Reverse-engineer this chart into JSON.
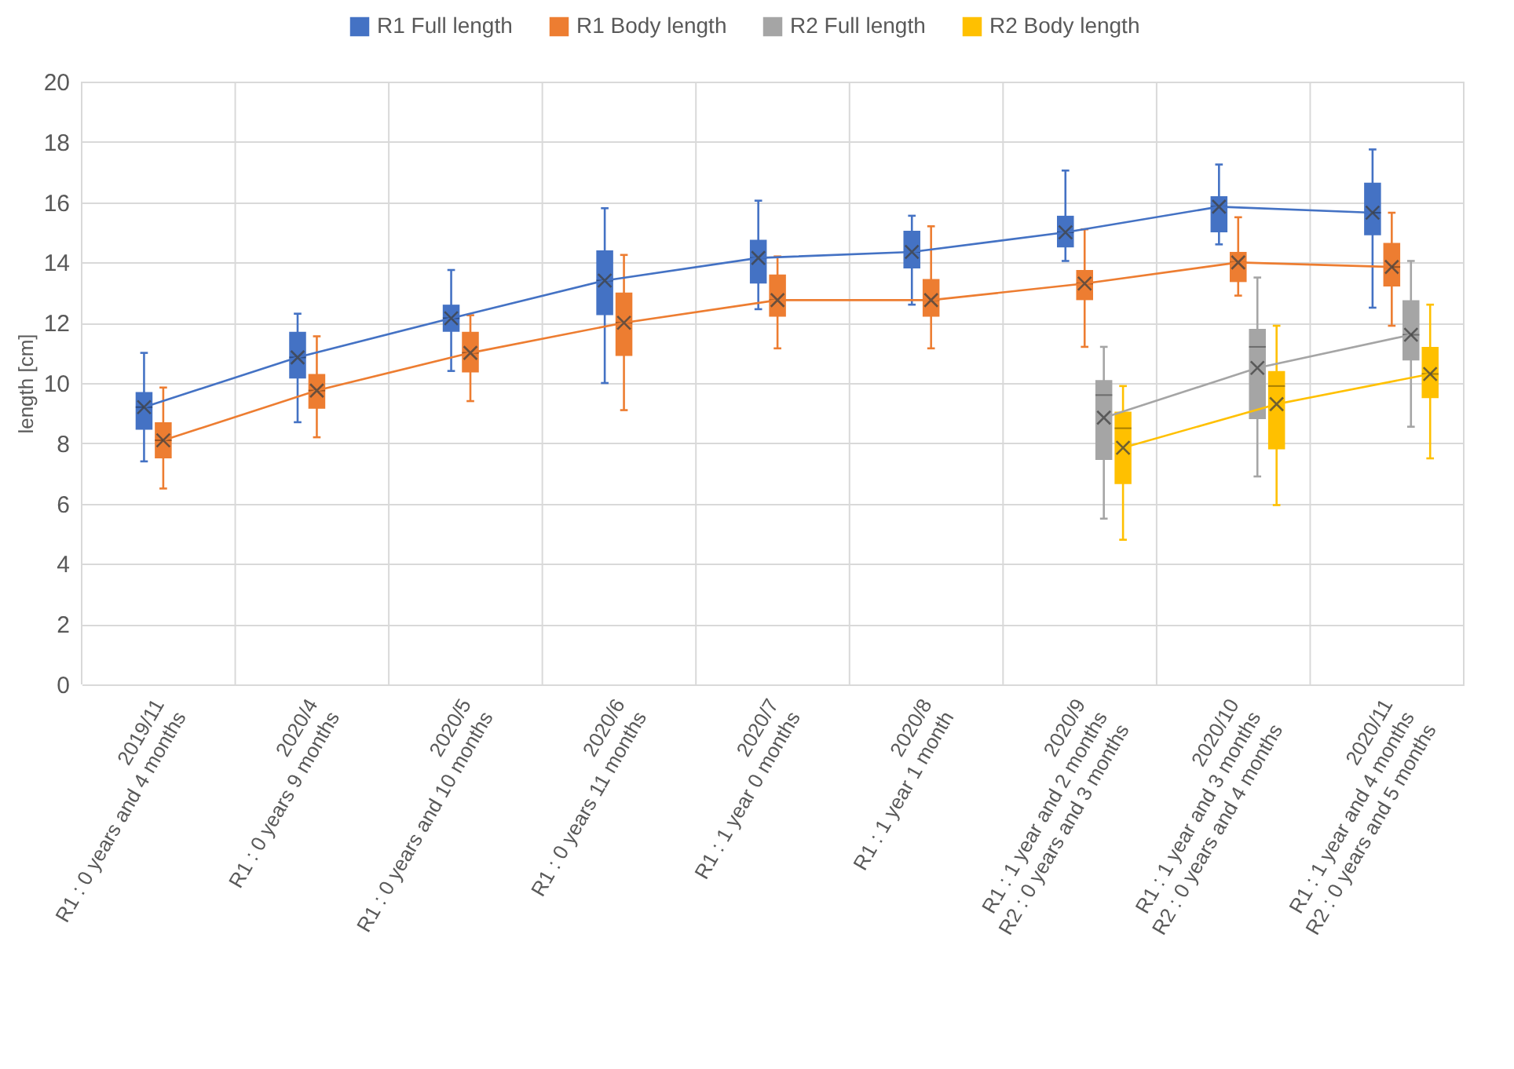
{
  "chart_data": {
    "type": "box",
    "ylabel": "length [cm]",
    "categories": [
      "2019/11\nR1 : 0 years and 4 months",
      "2020/4\nR1 : 0 years 9 months",
      "2020/5\nR1 : 0 years and 10 months",
      "2020/6\nR1 : 0 years 11 months",
      "2020/7\nR1 : 1 year 0 months",
      "2020/8\nR1 : 1 year 1 month",
      "2020/9\nR1 : 1 year and 2 months\nR2 : 0 years and 3 months",
      "2020/10\nR1 : 1 year and 3 months\nR2 : 0 years and 4 months",
      "2020/11\nR1 : 1 year and 4 months\nR2 : 0 years and 5 months"
    ],
    "series": [
      {
        "name": "R1 Full length",
        "color": "#4472c4",
        "boxes": [
          {
            "low": 7.4,
            "q1": 8.45,
            "median": 9.2,
            "q3": 9.7,
            "high": 11.0
          },
          {
            "low": 8.7,
            "q1": 10.15,
            "median": 10.85,
            "q3": 11.7,
            "high": 12.3
          },
          {
            "low": 10.4,
            "q1": 11.7,
            "median": 12.15,
            "q3": 12.6,
            "high": 13.75
          },
          {
            "low": 10.0,
            "q1": 12.25,
            "median": 13.4,
            "q3": 14.4,
            "high": 15.8
          },
          {
            "low": 12.45,
            "q1": 13.3,
            "median": 14.15,
            "q3": 14.75,
            "high": 16.05
          },
          {
            "low": 12.6,
            "q1": 13.8,
            "median": 14.35,
            "q3": 15.05,
            "high": 15.55
          },
          {
            "low": 14.05,
            "q1": 14.5,
            "median": 15.0,
            "q3": 15.55,
            "high": 17.05
          },
          {
            "low": 14.6,
            "q1": 15.0,
            "median": 15.85,
            "q3": 16.2,
            "high": 17.25
          },
          {
            "low": 12.5,
            "q1": 14.9,
            "median": 15.65,
            "q3": 16.65,
            "high": 17.75
          }
        ]
      },
      {
        "name": "R1 Body length",
        "color": "#ed7d31",
        "boxes": [
          {
            "low": 6.5,
            "q1": 7.5,
            "median": 8.1,
            "q3": 8.7,
            "high": 9.85
          },
          {
            "low": 8.2,
            "q1": 9.15,
            "median": 9.75,
            "q3": 10.3,
            "high": 11.55
          },
          {
            "low": 9.4,
            "q1": 10.35,
            "median": 11.0,
            "q3": 11.7,
            "high": 12.25
          },
          {
            "low": 9.1,
            "q1": 10.9,
            "median": 12.0,
            "q3": 13.0,
            "high": 14.25
          },
          {
            "low": 11.15,
            "q1": 12.2,
            "median": 12.75,
            "q3": 13.6,
            "high": 14.2
          },
          {
            "low": 11.15,
            "q1": 12.2,
            "median": 12.75,
            "q3": 13.45,
            "high": 15.2
          },
          {
            "low": 11.2,
            "q1": 12.75,
            "median": 13.3,
            "q3": 13.75,
            "high": 15.1
          },
          {
            "low": 12.9,
            "q1": 13.35,
            "median": 14.0,
            "q3": 14.35,
            "high": 15.5
          },
          {
            "low": 11.9,
            "q1": 13.2,
            "median": 13.85,
            "q3": 14.65,
            "high": 15.65
          }
        ]
      },
      {
        "name": "R2 Full length",
        "color": "#a5a5a5",
        "boxes": [
          null,
          null,
          null,
          null,
          null,
          null,
          {
            "low": 5.5,
            "q1": 7.45,
            "median": 9.6,
            "q3": 10.1,
            "high": 11.2
          },
          {
            "low": 6.9,
            "q1": 8.8,
            "median": 11.2,
            "q3": 11.8,
            "high": 13.5
          },
          {
            "low": 8.55,
            "q1": 10.75,
            "median": 11.6,
            "q3": 12.75,
            "high": 14.05
          }
        ]
      },
      {
        "name": "R2 Body length",
        "color": "#ffc000",
        "boxes": [
          null,
          null,
          null,
          null,
          null,
          null,
          {
            "low": 4.8,
            "q1": 6.65,
            "median": 8.5,
            "q3": 9.05,
            "high": 9.9
          },
          {
            "low": 5.95,
            "q1": 7.8,
            "median": 9.9,
            "q3": 10.4,
            "high": 11.9
          },
          {
            "low": 7.5,
            "q1": 9.5,
            "median": 10.3,
            "q3": 11.2,
            "high": 12.6
          }
        ]
      },
      {
        "type": "line",
        "color": "#4472c4",
        "marker": "cross",
        "values": [
          9.2,
          10.85,
          12.15,
          13.4,
          14.15,
          14.35,
          15.0,
          15.85,
          15.65
        ]
      },
      {
        "type": "line",
        "color": "#ed7d31",
        "marker": "cross",
        "values": [
          8.1,
          9.75,
          11.0,
          12.0,
          12.75,
          12.75,
          13.3,
          14.0,
          13.85
        ]
      },
      {
        "type": "line",
        "color": "#a5a5a5",
        "marker": "cross",
        "values": [
          null,
          null,
          null,
          null,
          null,
          null,
          8.85,
          10.5,
          11.6
        ]
      },
      {
        "type": "line",
        "color": "#ffc000",
        "marker": "cross",
        "values": [
          null,
          null,
          null,
          null,
          null,
          null,
          7.85,
          9.3,
          10.3
        ]
      }
    ],
    "ylim": [
      0,
      20
    ],
    "yticks": [
      0,
      2,
      4,
      6,
      8,
      10,
      12,
      14,
      16,
      18,
      20
    ],
    "grid": true,
    "legend": "top"
  }
}
